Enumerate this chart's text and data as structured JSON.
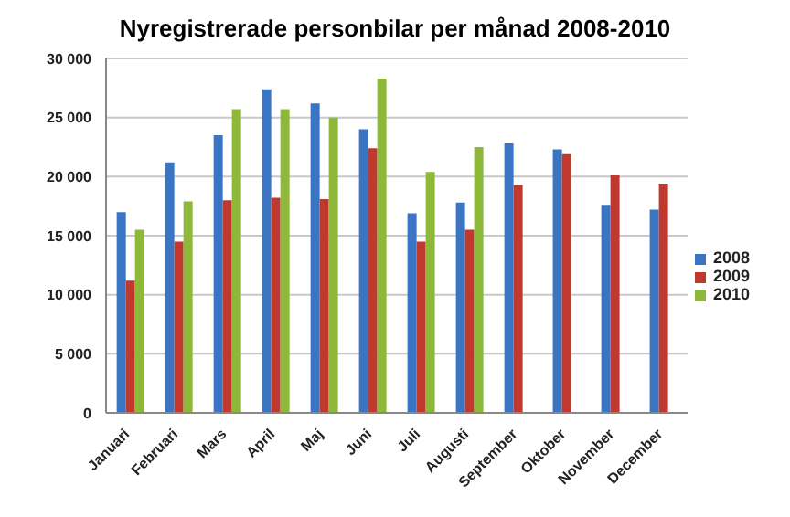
{
  "chart_data": {
    "type": "bar",
    "title": "Nyregistrerade personbilar per månad 2008-2010",
    "categories": [
      "Januari",
      "Februari",
      "Mars",
      "April",
      "Maj",
      "Juni",
      "Juli",
      "Augusti",
      "September",
      "Oktober",
      "November",
      "December"
    ],
    "series": [
      {
        "name": "2008",
        "color": "#3a75c4",
        "values": [
          17000,
          21200,
          23500,
          27400,
          26200,
          24000,
          16900,
          17800,
          22800,
          22300,
          17600,
          17200
        ]
      },
      {
        "name": "2009",
        "color": "#c0392f",
        "values": [
          11200,
          14500,
          18000,
          18200,
          18100,
          22400,
          14500,
          15500,
          19300,
          21900,
          20100,
          19400
        ]
      },
      {
        "name": "2010",
        "color": "#8db83a",
        "values": [
          15500,
          17900,
          25700,
          25700,
          25000,
          28300,
          20400,
          22500,
          null,
          null,
          null,
          null
        ]
      }
    ],
    "ylim": [
      0,
      30000
    ],
    "yticks": [
      0,
      {
        "value": 5000,
        "label": "5 000"
      },
      {
        "value": 10000,
        "label": "10 000"
      },
      {
        "value": 15000,
        "label": "15 000"
      },
      {
        "value": 20000,
        "label": "20 000"
      },
      {
        "value": 25000,
        "label": "25 000"
      },
      {
        "value": 30000,
        "label": "30 000"
      }
    ],
    "grid": "y",
    "legend": "right"
  }
}
